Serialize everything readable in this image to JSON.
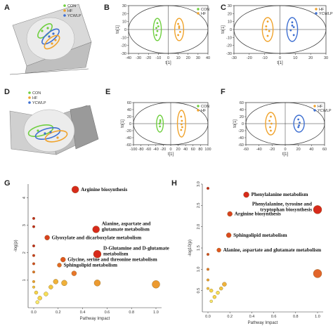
{
  "chart_data": [
    {
      "panel": "A",
      "type": "scatter",
      "view": "3d",
      "legend": [
        "CON",
        "HF",
        "YCWLP"
      ],
      "colors": {
        "CON": "#6fcf3f",
        "HF": "#f0a32c",
        "YCWLP": "#3e6fd1"
      }
    },
    {
      "panel": "B",
      "type": "scatter",
      "legend": [
        "CON",
        "HF"
      ],
      "xlabel": "t[1]",
      "ylabel": "to[1]",
      "xlim": [
        -40,
        40
      ],
      "ylim": [
        -30,
        30
      ],
      "xticks": [
        -40,
        -30,
        -20,
        -10,
        0,
        10,
        20,
        30,
        40
      ],
      "yticks": [
        -30,
        -20,
        -10,
        0,
        10,
        20,
        30
      ],
      "series": [
        {
          "name": "CON",
          "color": "#6fcf3f",
          "x": [
            -11,
            -12,
            -11,
            -12,
            -10
          ],
          "y": [
            8,
            2,
            -2,
            -7,
            4
          ]
        },
        {
          "name": "HF",
          "color": "#f0a32c",
          "x": [
            10,
            11,
            12,
            10,
            11
          ],
          "y": [
            7,
            2,
            -3,
            -7,
            4
          ]
        }
      ],
      "ellipses": [
        {
          "name": "CON",
          "color": "#6fcf3f",
          "cx": -11,
          "cy": 0,
          "rx": 4,
          "ry": 14
        },
        {
          "name": "HF",
          "color": "#f0a32c",
          "cx": 11,
          "cy": 0,
          "rx": 4.5,
          "ry": 14
        }
      ]
    },
    {
      "panel": "C",
      "type": "scatter",
      "legend": [
        "HF",
        "YCWLP"
      ],
      "xlabel": "t[1]",
      "ylabel": "to[1]",
      "xlim": [
        -30,
        30
      ],
      "ylim": [
        -30,
        30
      ],
      "xticks": [
        -30,
        -20,
        -10,
        0,
        10,
        20,
        30
      ],
      "yticks": [
        -30,
        -20,
        -10,
        0,
        10,
        20,
        30
      ],
      "series": [
        {
          "name": "HF",
          "color": "#f0a32c",
          "x": [
            -8,
            -9,
            -7,
            -8,
            -9
          ],
          "y": [
            10,
            4,
            -2,
            -8,
            0
          ]
        },
        {
          "name": "YCWLP",
          "color": "#3e6fd1",
          "x": [
            8,
            9,
            7,
            9,
            8
          ],
          "y": [
            9,
            3,
            -1,
            -7,
            5
          ]
        }
      ],
      "ellipses": [
        {
          "name": "HF",
          "color": "#f0a32c",
          "cx": -8,
          "cy": 0,
          "rx": 3.5,
          "ry": 15
        },
        {
          "name": "YCWLP",
          "color": "#3e6fd1",
          "cx": 8,
          "cy": 0,
          "rx": 3.5,
          "ry": 15
        }
      ]
    },
    {
      "panel": "D",
      "type": "scatter",
      "view": "3d",
      "legend": [
        "CON",
        "HF",
        "YCWLP"
      ],
      "colors": {
        "CON": "#6fcf3f",
        "HF": "#f0a32c",
        "YCWLP": "#3e6fd1"
      }
    },
    {
      "panel": "E",
      "type": "scatter",
      "legend": [
        "CON",
        "HF"
      ],
      "xlabel": "t[1]",
      "ylabel": "to[1]",
      "xlim": [
        -100,
        100
      ],
      "ylim": [
        -60,
        60
      ],
      "xticks": [
        -100,
        -80,
        -60,
        -40,
        -20,
        0,
        20,
        40,
        60,
        80,
        100
      ],
      "yticks": [
        -60,
        -40,
        -20,
        0,
        20,
        40,
        60
      ],
      "series": [
        {
          "name": "CON",
          "color": "#6fcf3f",
          "x": [
            -28,
            -30,
            -29,
            -28
          ],
          "y": [
            10,
            0,
            -8,
            5
          ]
        },
        {
          "name": "HF",
          "color": "#f0a32c",
          "x": [
            28,
            30,
            29,
            31,
            28
          ],
          "y": [
            20,
            8,
            -2,
            -10,
            -18
          ]
        }
      ],
      "ellipses": [
        {
          "name": "CON",
          "color": "#6fcf3f",
          "cx": -29,
          "cy": 0,
          "rx": 9,
          "ry": 24
        },
        {
          "name": "HF",
          "color": "#f0a32c",
          "cx": 29,
          "cy": 0,
          "rx": 11,
          "ry": 38
        }
      ]
    },
    {
      "panel": "F",
      "type": "scatter",
      "legend": [
        "HF",
        "YCWLP"
      ],
      "xlabel": "t[1]",
      "ylabel": "to[1]",
      "xlim": [
        -60,
        60
      ],
      "ylim": [
        -60,
        60
      ],
      "xticks": [
        -60,
        -40,
        -20,
        0,
        20,
        40,
        60
      ],
      "yticks": [
        -60,
        -40,
        -20,
        0,
        20,
        40,
        60
      ],
      "series": [
        {
          "name": "HF",
          "color": "#f0a32c",
          "x": [
            -22,
            -24,
            -21,
            -23,
            -22
          ],
          "y": [
            20,
            8,
            0,
            -10,
            -20
          ]
        },
        {
          "name": "YCWLP",
          "color": "#3e6fd1",
          "x": [
            20,
            22,
            21,
            20
          ],
          "y": [
            12,
            3,
            -5,
            -10
          ]
        }
      ],
      "ellipses": [
        {
          "name": "HF",
          "color": "#f0a32c",
          "cx": -22,
          "cy": 0,
          "rx": 8,
          "ry": 32
        },
        {
          "name": "YCWLP",
          "color": "#3e6fd1",
          "cx": 21,
          "cy": 0,
          "rx": 8,
          "ry": 24
        }
      ]
    },
    {
      "panel": "G",
      "type": "scatter",
      "xlabel": "Pathway Impact",
      "ylabel": "-log(p)",
      "xlim": [
        0,
        1.0
      ],
      "ylim": [
        0,
        4.5
      ],
      "xticks": [
        0.0,
        0.2,
        0.4,
        0.6,
        0.8,
        1.0
      ],
      "yticks": [
        1,
        2,
        3,
        4
      ],
      "points": [
        {
          "x": 0.34,
          "y": 4.3,
          "size": 5,
          "color": "#d72a1b",
          "label": "Arginine biosynthesis"
        },
        {
          "x": 0.51,
          "y": 2.85,
          "size": 5,
          "color": "#d72a1b",
          "label": "Alanine, aspartate and\nglutamate metabolism"
        },
        {
          "x": 0.11,
          "y": 2.55,
          "size": 3.5,
          "color": "#d8421e",
          "label": "Glyoxylate and dicarboxylate metabolism"
        },
        {
          "x": 0.52,
          "y": 1.95,
          "size": 5.5,
          "color": "#d72a1b",
          "label": "D-Glutamine and D-glutamate\nmetabolism"
        },
        {
          "x": 0.24,
          "y": 1.75,
          "size": 3.5,
          "color": "#e0571f",
          "label": "Glycine, serine and threonine metabolism"
        },
        {
          "x": 0.21,
          "y": 1.55,
          "size": 3,
          "color": "#e26a22",
          "label": "Sphingolipid metabolism"
        },
        {
          "x": 0.33,
          "y": 1.25,
          "size": 3.5,
          "color": "#e8762a",
          "label": ""
        },
        {
          "x": 0.0,
          "y": 3.25,
          "size": 1.8,
          "color": "#c3261b",
          "label": ""
        },
        {
          "x": 0.0,
          "y": 2.95,
          "size": 1.8,
          "color": "#c3261b",
          "label": ""
        },
        {
          "x": 0.0,
          "y": 2.25,
          "size": 1.8,
          "color": "#c3261b",
          "label": ""
        },
        {
          "x": 0.0,
          "y": 1.9,
          "size": 1.8,
          "color": "#cd3a1d",
          "label": ""
        },
        {
          "x": 0.0,
          "y": 1.6,
          "size": 1.8,
          "color": "#d44b1f",
          "label": ""
        },
        {
          "x": 0.0,
          "y": 1.3,
          "size": 1.8,
          "color": "#e07626",
          "label": ""
        },
        {
          "x": 0.0,
          "y": 0.95,
          "size": 1.8,
          "color": "#f0a32c",
          "label": ""
        },
        {
          "x": 0.0,
          "y": 0.75,
          "size": 1.8,
          "color": "#f4c23c",
          "label": ""
        },
        {
          "x": 0.02,
          "y": 0.55,
          "size": 2.5,
          "color": "#f7d64a",
          "label": ""
        },
        {
          "x": 0.05,
          "y": 0.35,
          "size": 3,
          "color": "#f7d64a",
          "label": ""
        },
        {
          "x": 0.1,
          "y": 0.5,
          "size": 3,
          "color": "#f6df57",
          "label": ""
        },
        {
          "x": 0.14,
          "y": 0.75,
          "size": 3,
          "color": "#f3c640",
          "label": ""
        },
        {
          "x": 0.18,
          "y": 0.95,
          "size": 3.5,
          "color": "#f0b23a",
          "label": ""
        },
        {
          "x": 0.25,
          "y": 0.9,
          "size": 4,
          "color": "#efb03a",
          "label": ""
        },
        {
          "x": 0.52,
          "y": 0.9,
          "size": 4.5,
          "color": "#ec9a30",
          "label": ""
        },
        {
          "x": 1.0,
          "y": 0.85,
          "size": 5.5,
          "color": "#ec9a30",
          "label": ""
        },
        {
          "x": 0.03,
          "y": 0.2,
          "size": 2.5,
          "color": "#f9ea6c",
          "label": ""
        }
      ]
    },
    {
      "panel": "H",
      "type": "scatter",
      "xlabel": "Pathway Impact",
      "ylabel": "-log10(p)",
      "xlim": [
        0,
        1.0
      ],
      "ylim": [
        0,
        3.0
      ],
      "xticks": [
        0.0,
        0.2,
        0.4,
        0.6,
        0.8,
        1.0
      ],
      "yticks": [
        0.5,
        1.0,
        1.5,
        2.0,
        2.5,
        3.0
      ],
      "points": [
        {
          "x": 0.35,
          "y": 2.75,
          "size": 4,
          "color": "#d72a1b",
          "label": "Phenylalanine metabolism"
        },
        {
          "x": 1.0,
          "y": 2.4,
          "size": 6,
          "color": "#d72a1b",
          "label": "Phenylalanine, tyrosine and\ntryptophan biosynthesis"
        },
        {
          "x": 0.2,
          "y": 2.3,
          "size": 3.5,
          "color": "#d8421e",
          "label": "Arginine biosynthesis"
        },
        {
          "x": 0.19,
          "y": 1.8,
          "size": 3.5,
          "color": "#db4a1e",
          "label": "Sphingolipid metabolism"
        },
        {
          "x": 0.1,
          "y": 1.45,
          "size": 3,
          "color": "#e0571f",
          "label": "Alanine, aspartate and glutamate metabolism"
        },
        {
          "x": 1.0,
          "y": 0.9,
          "size": 6,
          "color": "#e2652a",
          "label": ""
        },
        {
          "x": 0.0,
          "y": 2.9,
          "size": 1.8,
          "color": "#c3261b",
          "label": ""
        },
        {
          "x": 0.0,
          "y": 1.35,
          "size": 1.8,
          "color": "#d44b1f",
          "label": ""
        },
        {
          "x": 0.0,
          "y": 1.0,
          "size": 1.8,
          "color": "#e07626",
          "label": ""
        },
        {
          "x": 0.0,
          "y": 0.75,
          "size": 1.8,
          "color": "#f0a32c",
          "label": ""
        },
        {
          "x": 0.0,
          "y": 0.55,
          "size": 1.8,
          "color": "#f4c23c",
          "label": ""
        },
        {
          "x": 0.03,
          "y": 0.5,
          "size": 2.5,
          "color": "#f7d64a",
          "label": ""
        },
        {
          "x": 0.06,
          "y": 0.35,
          "size": 2.5,
          "color": "#f7d64a",
          "label": ""
        },
        {
          "x": 0.09,
          "y": 0.45,
          "size": 2.5,
          "color": "#f6df57",
          "label": ""
        },
        {
          "x": 0.12,
          "y": 0.55,
          "size": 2.5,
          "color": "#f3c640",
          "label": ""
        },
        {
          "x": 0.15,
          "y": 0.65,
          "size": 3,
          "color": "#f0b23a",
          "label": ""
        },
        {
          "x": 0.03,
          "y": 0.25,
          "size": 2,
          "color": "#f9ea6c",
          "label": ""
        }
      ]
    }
  ],
  "panel_labels": [
    "A",
    "B",
    "C",
    "D",
    "E",
    "F",
    "G",
    "H"
  ]
}
